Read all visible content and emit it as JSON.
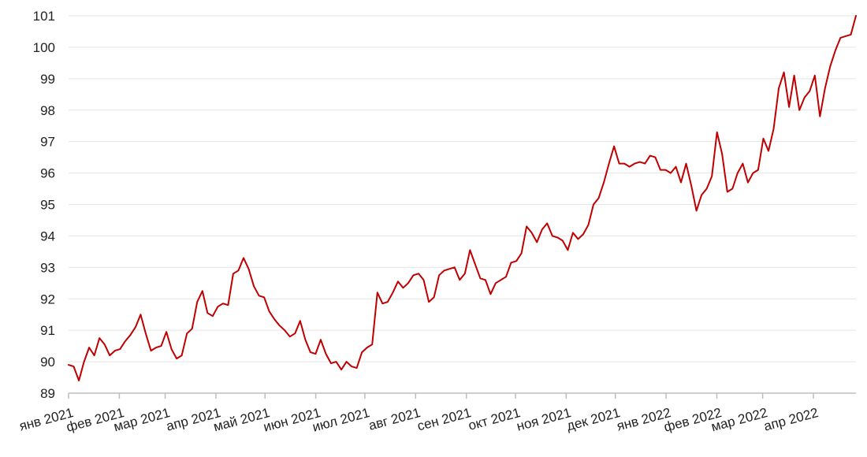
{
  "colors": {
    "series": "#c00000",
    "grid": "#e4e4e4",
    "axis": "#bdbdbd",
    "text": "#222222"
  },
  "chart_data": {
    "type": "line",
    "title": "",
    "xlabel": "",
    "ylabel": "",
    "ylim": [
      89,
      101
    ],
    "yticks": [
      "89",
      "90",
      "91",
      "92",
      "93",
      "94",
      "95",
      "96",
      "97",
      "98",
      "99",
      "100",
      "101"
    ],
    "xticks": [
      "янв 2021",
      "фев 2021",
      "мар 2021",
      "апр 2021",
      "май 2021",
      "июн 2021",
      "июл 2021",
      "авг 2021",
      "сен 2021",
      "окт 2021",
      "ноя 2021",
      "дек 2021",
      "янв 2022",
      "фев 2022",
      "мар 2022",
      "апр 2022"
    ],
    "grid": "horizontal",
    "legend": "none",
    "series": [
      {
        "x_start": "2021-01-01",
        "x_end": "2022-04-27",
        "values": [
          89.9,
          89.85,
          89.4,
          90.0,
          90.45,
          90.2,
          90.75,
          90.55,
          90.2,
          90.35,
          90.4,
          90.65,
          90.85,
          91.1,
          91.5,
          90.9,
          90.35,
          90.45,
          90.5,
          90.95,
          90.4,
          90.1,
          90.2,
          90.9,
          91.05,
          91.9,
          92.25,
          91.55,
          91.45,
          91.75,
          91.85,
          91.8,
          92.8,
          92.9,
          93.3,
          92.95,
          92.4,
          92.1,
          92.05,
          91.6,
          91.35,
          91.15,
          91.0,
          90.8,
          90.9,
          91.3,
          90.7,
          90.3,
          90.25,
          90.7,
          90.25,
          89.95,
          90.0,
          89.75,
          90.0,
          89.85,
          89.8,
          90.3,
          90.45,
          90.55,
          92.2,
          91.85,
          91.9,
          92.2,
          92.55,
          92.35,
          92.5,
          92.75,
          92.8,
          92.6,
          91.9,
          92.05,
          92.75,
          92.9,
          92.95,
          93.0,
          92.6,
          92.8,
          93.55,
          93.1,
          92.65,
          92.6,
          92.15,
          92.5,
          92.6,
          92.7,
          93.15,
          93.2,
          93.45,
          94.3,
          94.1,
          93.8,
          94.2,
          94.4,
          94.0,
          93.95,
          93.85,
          93.55,
          94.1,
          93.9,
          94.05,
          94.35,
          95.0,
          95.2,
          95.7,
          96.3,
          96.85,
          96.3,
          96.3,
          96.2,
          96.3,
          96.35,
          96.3,
          96.55,
          96.5,
          96.1,
          96.1,
          96.0,
          96.2,
          95.7,
          96.3,
          95.6,
          94.8,
          95.3,
          95.5,
          95.9,
          97.3,
          96.6,
          95.4,
          95.5,
          96.0,
          96.3,
          95.7,
          96.0,
          96.1,
          97.1,
          96.7,
          97.4,
          98.7,
          99.2,
          98.1,
          99.1,
          98.0,
          98.4,
          98.6,
          99.1,
          97.8,
          98.7,
          99.4,
          99.9,
          100.3,
          100.35,
          100.4,
          101.0
        ]
      }
    ]
  }
}
